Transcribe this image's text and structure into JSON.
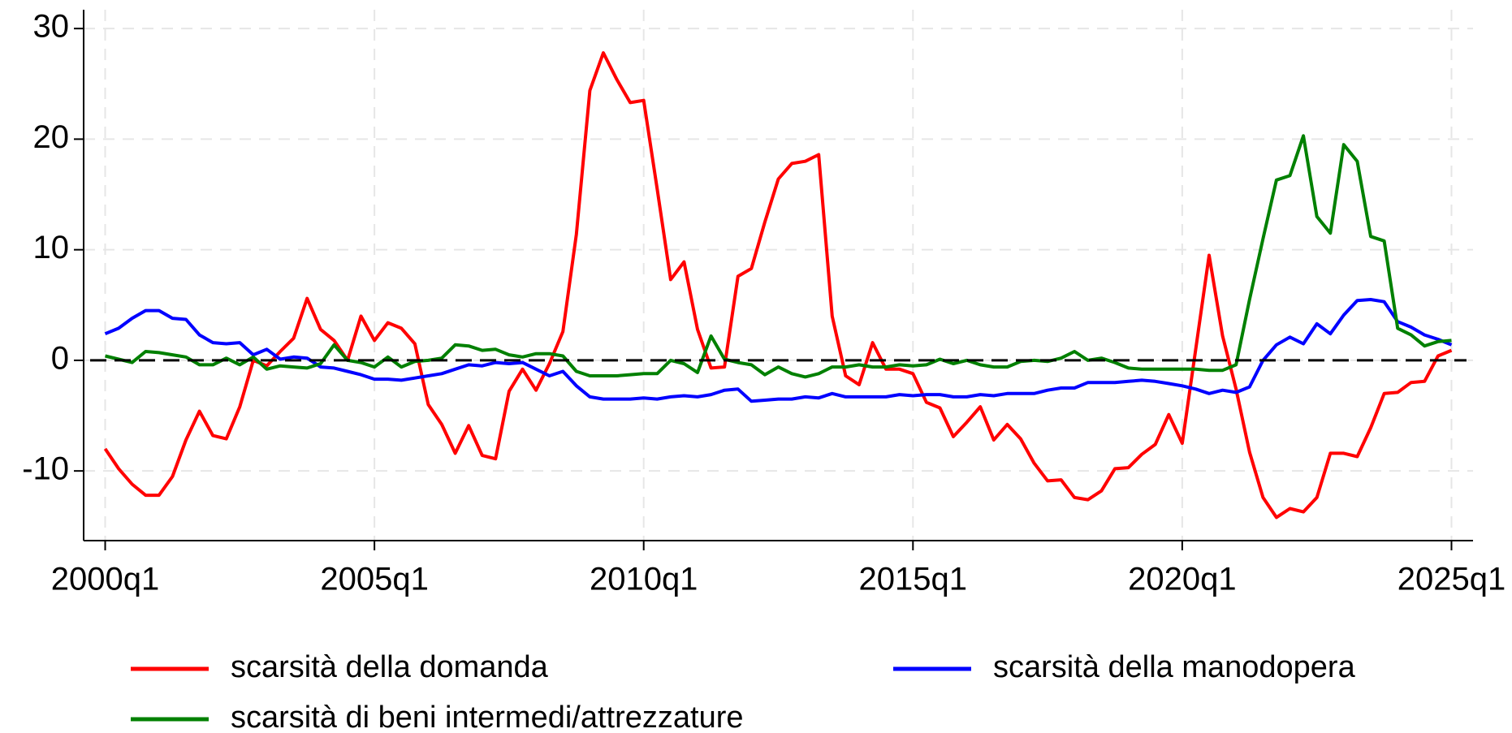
{
  "chart_data": {
    "type": "line",
    "x": [
      2000,
      2000.25,
      2000.5,
      2000.75,
      2001,
      2001.25,
      2001.5,
      2001.75,
      2002,
      2002.25,
      2002.5,
      2002.75,
      2003,
      2003.25,
      2003.5,
      2003.75,
      2004,
      2004.25,
      2004.5,
      2004.75,
      2005,
      2005.25,
      2005.5,
      2005.75,
      2006,
      2006.25,
      2006.5,
      2006.75,
      2007,
      2007.25,
      2007.5,
      2007.75,
      2008,
      2008.25,
      2008.5,
      2008.75,
      2009,
      2009.25,
      2009.5,
      2009.75,
      2010,
      2010.25,
      2010.5,
      2010.75,
      2011,
      2011.25,
      2011.5,
      2011.75,
      2012,
      2012.25,
      2012.5,
      2012.75,
      2013,
      2013.25,
      2013.5,
      2013.75,
      2014,
      2014.25,
      2014.5,
      2014.75,
      2015,
      2015.25,
      2015.5,
      2015.75,
      2016,
      2016.25,
      2016.5,
      2016.75,
      2017,
      2017.25,
      2017.5,
      2017.75,
      2018,
      2018.25,
      2018.5,
      2018.75,
      2019,
      2019.25,
      2019.5,
      2019.75,
      2020,
      2020.25,
      2020.5,
      2020.75,
      2021,
      2021.25,
      2021.5,
      2021.75,
      2022,
      2022.25,
      2022.5,
      2022.75,
      2023,
      2023.25,
      2023.5,
      2023.75,
      2024,
      2024.25,
      2024.5,
      2024.75,
      2025
    ],
    "series": [
      {
        "name": "scarsità della domanda",
        "color": "#ff0000",
        "values": [
          -8,
          -9.8,
          -11.2,
          -12.2,
          -12.2,
          -10.5,
          -7.2,
          -4.6,
          -6.8,
          -7.1,
          -4.2,
          0,
          -0.5,
          0.8,
          2,
          5.6,
          2.8,
          1.8,
          0,
          4,
          1.8,
          3.4,
          2.9,
          1.5,
          -4,
          -5.8,
          -8.4,
          -5.9,
          -8.6,
          -8.9,
          -2.8,
          -0.8,
          -2.7,
          -0.3,
          2.6,
          11.4,
          24.4,
          27.8,
          25.4,
          23.3,
          23.5,
          15.5,
          7.3,
          8.9,
          2.8,
          -0.7,
          -0.6,
          7.6,
          8.3,
          12.5,
          16.4,
          17.8,
          18,
          18.6,
          4,
          -1.4,
          -2.2,
          1.6,
          -0.8,
          -0.8,
          -1.2,
          -3.8,
          -4.3,
          -6.9,
          -5.6,
          -4.2,
          -7.2,
          -5.8,
          -7.1,
          -9.3,
          -10.9,
          -10.8,
          -12.4,
          -12.6,
          -11.8,
          -9.8,
          -9.7,
          -8.5,
          -7.6,
          -4.9,
          -7.5,
          1,
          9.5,
          2.2,
          -2.6,
          -8.3,
          -12.4,
          -14.2,
          -13.4,
          -13.7,
          -12.4,
          -8.4,
          -8.4,
          -8.7,
          -6.1,
          -3,
          -2.9,
          -2,
          -1.9,
          0.4,
          0.9
        ]
      },
      {
        "name": "scarsità della manodopera",
        "color": "#0000ff",
        "values": [
          2.4,
          2.9,
          3.8,
          4.5,
          4.5,
          3.8,
          3.7,
          2.3,
          1.6,
          1.5,
          1.6,
          0.5,
          1,
          0.1,
          0.3,
          0.2,
          -0.6,
          -0.7,
          -1,
          -1.3,
          -1.7,
          -1.7,
          -1.8,
          -1.6,
          -1.4,
          -1.2,
          -0.8,
          -0.4,
          -0.5,
          -0.2,
          -0.3,
          -0.2,
          -0.8,
          -1.4,
          -1,
          -2.3,
          -3.3,
          -3.5,
          -3.5,
          -3.5,
          -3.4,
          -3.5,
          -3.3,
          -3.2,
          -3.3,
          -3.1,
          -2.7,
          -2.6,
          -3.7,
          -3.6,
          -3.5,
          -3.5,
          -3.3,
          -3.4,
          -3,
          -3.3,
          -3.3,
          -3.3,
          -3.3,
          -3.1,
          -3.2,
          -3.1,
          -3.1,
          -3.3,
          -3.3,
          -3.1,
          -3.2,
          -3,
          -3,
          -3,
          -2.7,
          -2.5,
          -2.5,
          -2,
          -2,
          -2,
          -1.9,
          -1.8,
          -1.9,
          -2.1,
          -2.3,
          -2.6,
          -3,
          -2.7,
          -2.9,
          -2.4,
          0,
          1.4,
          2.1,
          1.5,
          3.3,
          2.4,
          4.1,
          5.4,
          5.5,
          5.3,
          3.5,
          3,
          2.3,
          1.9,
          1.4
        ]
      },
      {
        "name": "scarsità di beni intermedi/attrezzature",
        "color": "#008000",
        "values": [
          0.4,
          0.1,
          -0.2,
          0.8,
          0.7,
          0.5,
          0.3,
          -0.4,
          -0.4,
          0.2,
          -0.4,
          0.3,
          -0.8,
          -0.5,
          -0.6,
          -0.7,
          -0.3,
          1.4,
          0,
          -0.2,
          -0.6,
          0.3,
          -0.6,
          -0.1,
          0,
          0.2,
          1.4,
          1.3,
          0.9,
          1,
          0.5,
          0.3,
          0.6,
          0.6,
          0.4,
          -1,
          -1.4,
          -1.4,
          -1.4,
          -1.3,
          -1.2,
          -1.2,
          0,
          -0.3,
          -1.1,
          2.2,
          0.1,
          -0.2,
          -0.4,
          -1.3,
          -0.6,
          -1.2,
          -1.5,
          -1.2,
          -0.6,
          -0.6,
          -0.4,
          -0.6,
          -0.6,
          -0.4,
          -0.5,
          -0.4,
          0.1,
          -0.3,
          0,
          -0.4,
          -0.6,
          -0.6,
          -0.1,
          0,
          -0.1,
          0.2,
          0.8,
          0,
          0.2,
          -0.2,
          -0.7,
          -0.8,
          -0.8,
          -0.8,
          -0.8,
          -0.8,
          -0.9,
          -0.9,
          -0.4,
          5.5,
          11,
          16.3,
          16.7,
          20.3,
          13,
          11.5,
          19.5,
          18,
          11.2,
          10.8,
          2.9,
          2.3,
          1.3,
          1.7,
          1.8
        ]
      }
    ],
    "xlim": [
      1999.6,
      2025.4
    ],
    "xticks": [
      {
        "value": 2000,
        "label": "2000q1"
      },
      {
        "value": 2005,
        "label": "2005q1"
      },
      {
        "value": 2010,
        "label": "2010q1"
      },
      {
        "value": 2015,
        "label": "2015q1"
      },
      {
        "value": 2020,
        "label": "2020q1"
      },
      {
        "value": 2025,
        "label": "2025q1"
      }
    ],
    "ylim": [
      -16.3,
      31.7
    ],
    "yticks": [
      {
        "value": -10,
        "label": "-10"
      },
      0,
      10,
      20,
      30
    ],
    "reference_line": 0,
    "grid": true,
    "legend": "bottom"
  }
}
